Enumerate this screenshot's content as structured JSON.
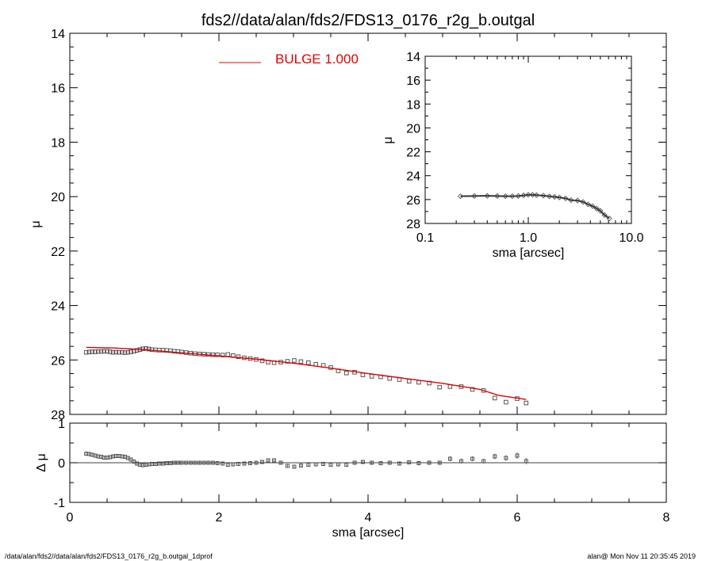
{
  "title": "fds2//data/alan/fds2/FDS13_0176_r2g_b.outgal",
  "footer": {
    "left": "/data/alan/fds2//data/alan/fds2/FDS13_0176_r2g_b.outgal_1dprof",
    "right": "alan@  Mon Nov 11 20:35:45 2019"
  },
  "colors": {
    "model": "#e00000",
    "data": "#555555",
    "axes": "#000000"
  },
  "chart_data": [
    {
      "type": "scatter",
      "panel": "main",
      "xlabel": "sma [arcsec]",
      "ylabel": "μ",
      "xlim": [
        0,
        8
      ],
      "ylim": [
        28,
        14
      ],
      "y_inverted": true,
      "xticks": [
        "0",
        "2",
        "4",
        "6",
        "8"
      ],
      "yticks": [
        "14",
        "16",
        "18",
        "20",
        "22",
        "24",
        "26",
        "28"
      ],
      "legend": {
        "label": "BULGE  1.000",
        "placement": "top-center"
      },
      "series": [
        {
          "kind": "data",
          "marker": "square",
          "x": [
            0.22,
            0.26,
            0.3,
            0.34,
            0.38,
            0.42,
            0.46,
            0.5,
            0.54,
            0.58,
            0.62,
            0.66,
            0.7,
            0.74,
            0.78,
            0.82,
            0.86,
            0.9,
            0.94,
            0.98,
            1.02,
            1.06,
            1.1,
            1.15,
            1.2,
            1.25,
            1.3,
            1.35,
            1.4,
            1.45,
            1.5,
            1.56,
            1.62,
            1.68,
            1.74,
            1.8,
            1.86,
            1.92,
            1.98,
            2.05,
            2.12,
            2.19,
            2.26,
            2.34,
            2.42,
            2.5,
            2.58,
            2.66,
            2.74,
            2.83,
            2.92,
            3.01,
            3.1,
            3.2,
            3.3,
            3.4,
            3.5,
            3.6,
            3.71,
            3.82,
            3.93,
            4.05,
            4.17,
            4.29,
            4.42,
            4.55,
            4.68,
            4.82,
            4.96,
            5.1,
            5.25,
            5.4,
            5.55,
            5.7,
            5.85,
            6.0,
            6.12
          ],
          "y": [
            25.72,
            25.71,
            25.7,
            25.7,
            25.69,
            25.69,
            25.68,
            25.68,
            25.7,
            25.72,
            25.71,
            25.72,
            25.72,
            25.73,
            25.72,
            25.7,
            25.68,
            25.65,
            25.62,
            25.59,
            25.58,
            25.6,
            25.62,
            25.63,
            25.64,
            25.64,
            25.65,
            25.66,
            25.68,
            25.69,
            25.71,
            25.73,
            25.75,
            25.77,
            25.78,
            25.79,
            25.8,
            25.81,
            25.81,
            25.82,
            25.8,
            25.84,
            25.88,
            25.92,
            25.95,
            25.98,
            26.03,
            26.08,
            26.1,
            26.08,
            26.05,
            26.02,
            26.06,
            26.1,
            26.16,
            26.2,
            26.28,
            26.4,
            26.48,
            26.45,
            26.55,
            26.6,
            26.62,
            26.68,
            26.72,
            26.78,
            26.82,
            26.85,
            27.0,
            26.98,
            26.98,
            27.08,
            27.12,
            27.4,
            27.55,
            27.42,
            27.58
          ]
        },
        {
          "kind": "model",
          "name": "BULGE  1.000",
          "x": [
            0.22,
            0.6,
            1.0,
            1.5,
            2.0,
            2.5,
            3.0,
            3.5,
            4.0,
            4.5,
            5.0,
            5.5,
            5.75,
            6.12
          ],
          "y": [
            25.54,
            25.56,
            25.62,
            25.74,
            25.85,
            25.97,
            26.12,
            26.3,
            26.5,
            26.68,
            26.86,
            27.08,
            27.3,
            27.45
          ]
        }
      ]
    },
    {
      "type": "scatter",
      "panel": "inset",
      "xlabel": "sma [arcsec]",
      "ylabel": "μ",
      "xscale": "log",
      "xlim": [
        0.1,
        10.0
      ],
      "ylim": [
        28,
        14
      ],
      "y_inverted": true,
      "xticks": [
        "0.1",
        "1.0",
        "10.0"
      ],
      "yticks": [
        "14",
        "16",
        "18",
        "20",
        "22",
        "24",
        "26",
        "28"
      ],
      "series": [
        {
          "kind": "data",
          "marker": "diamond",
          "x": [
            0.22,
            0.3,
            0.4,
            0.5,
            0.6,
            0.7,
            0.8,
            0.9,
            1.0,
            1.1,
            1.2,
            1.4,
            1.6,
            1.8,
            2.0,
            2.3,
            2.6,
            3.0,
            3.4,
            3.8,
            4.2,
            4.6,
            5.0,
            5.5,
            6.1
          ],
          "y": [
            25.72,
            25.7,
            25.69,
            25.7,
            25.72,
            25.72,
            25.7,
            25.65,
            25.6,
            25.6,
            25.63,
            25.67,
            25.73,
            25.78,
            25.82,
            25.9,
            26.05,
            26.08,
            26.2,
            26.4,
            26.55,
            26.75,
            26.95,
            27.3,
            27.58
          ]
        }
      ]
    },
    {
      "type": "scatter",
      "panel": "residual",
      "xlabel": "sma [arcsec]",
      "ylabel": "Δ μ",
      "xlim": [
        0,
        8
      ],
      "ylim": [
        -1,
        1
      ],
      "yticks": [
        "1",
        "0",
        "-1"
      ],
      "series": [
        {
          "kind": "residual",
          "marker": "square",
          "x": [
            0.22,
            0.26,
            0.3,
            0.34,
            0.38,
            0.42,
            0.46,
            0.5,
            0.54,
            0.58,
            0.62,
            0.66,
            0.7,
            0.74,
            0.78,
            0.82,
            0.86,
            0.9,
            0.94,
            0.98,
            1.02,
            1.06,
            1.1,
            1.15,
            1.2,
            1.25,
            1.3,
            1.35,
            1.4,
            1.45,
            1.5,
            1.56,
            1.62,
            1.68,
            1.74,
            1.8,
            1.86,
            1.92,
            1.98,
            2.05,
            2.12,
            2.19,
            2.26,
            2.34,
            2.42,
            2.5,
            2.58,
            2.66,
            2.74,
            2.83,
            2.92,
            3.01,
            3.1,
            3.2,
            3.3,
            3.4,
            3.5,
            3.6,
            3.71,
            3.82,
            3.93,
            4.05,
            4.17,
            4.29,
            4.42,
            4.55,
            4.68,
            4.82,
            4.96,
            5.1,
            5.25,
            5.4,
            5.55,
            5.7,
            5.85,
            6.0,
            6.12
          ],
          "y": [
            0.23,
            0.22,
            0.2,
            0.18,
            0.16,
            0.15,
            0.13,
            0.13,
            0.14,
            0.16,
            0.17,
            0.17,
            0.16,
            0.15,
            0.12,
            0.08,
            0.03,
            -0.02,
            -0.05,
            -0.06,
            -0.05,
            -0.04,
            -0.03,
            -0.03,
            -0.02,
            -0.02,
            -0.01,
            -0.01,
            0.0,
            0.0,
            0.0,
            0.0,
            0.0,
            0.0,
            0.0,
            0.0,
            0.0,
            0.0,
            -0.01,
            -0.02,
            -0.05,
            -0.04,
            -0.03,
            -0.02,
            -0.01,
            0.0,
            0.02,
            0.06,
            0.06,
            0.0,
            -0.08,
            -0.1,
            -0.07,
            -0.05,
            -0.04,
            -0.03,
            -0.05,
            -0.04,
            -0.05,
            0.0,
            0.02,
            0.0,
            -0.01,
            0.0,
            -0.02,
            0.01,
            -0.01,
            0.0,
            0.0,
            0.1,
            0.04,
            0.1,
            0.04,
            0.16,
            0.12,
            0.18,
            0.04
          ],
          "err": [
            0.01,
            0.01,
            0.01,
            0.01,
            0.01,
            0.01,
            0.01,
            0.01,
            0.01,
            0.01,
            0.01,
            0.01,
            0.01,
            0.01,
            0.01,
            0.01,
            0.01,
            0.01,
            0.01,
            0.01,
            0.01,
            0.01,
            0.01,
            0.01,
            0.01,
            0.01,
            0.01,
            0.01,
            0.01,
            0.01,
            0.01,
            0.01,
            0.01,
            0.01,
            0.01,
            0.01,
            0.01,
            0.01,
            0.02,
            0.02,
            0.03,
            0.03,
            0.02,
            0.02,
            0.02,
            0.02,
            0.03,
            0.03,
            0.03,
            0.03,
            0.03,
            0.03,
            0.03,
            0.03,
            0.03,
            0.03,
            0.03,
            0.03,
            0.04,
            0.04,
            0.04,
            0.04,
            0.04,
            0.04,
            0.05,
            0.05,
            0.05,
            0.05,
            0.05,
            0.06,
            0.06,
            0.06,
            0.06,
            0.07,
            0.07,
            0.08,
            0.08
          ]
        }
      ]
    }
  ]
}
